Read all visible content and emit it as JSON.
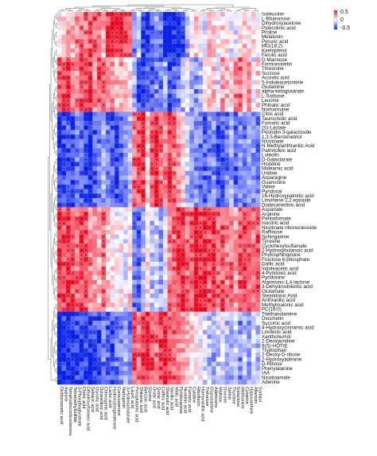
{
  "chart_data": {
    "type": "heatmap",
    "title": "",
    "xlabel": "",
    "ylabel": "",
    "color_scale": {
      "min": -0.5,
      "mid": 0,
      "max": 0.5,
      "low_color": "#0b24f0",
      "mid_color": "#ffffff",
      "high_color": "#f0112a"
    },
    "legend": {
      "position": "top-right",
      "ticks": [
        "0.5",
        "0",
        "-0.5"
      ]
    },
    "significance_marker": "*",
    "rows": [
      "Isoleucine",
      "L-Rhamnose",
      "Dihydroxyacetone",
      "Pipecolinic acid",
      "Proline",
      "Melatonin",
      "Pyruvic acid",
      "MG(18:2)",
      "Kaempferol",
      "Ferulic acid",
      "D-Mannose",
      "Formononetin",
      "Threonine",
      "Sucrose",
      "Aconitic acid",
      "5-Indoleacetonitrile",
      "Glutamine",
      "alpha-ketoglutarate",
      "L-Sorbose",
      "Leucine",
      "Phthalic acid",
      "Norharmane",
      "Citric acid",
      "Taurocholic acid",
      "Fumaric acid",
      "(S)-Lactate",
      "Peonidin 3-galactoside",
      "1,3,5-Benzenetriol",
      "Nicotinate",
      "N-Methylanthranilic Acid",
      "Palmitoleic acid",
      "Luteolin",
      "D-Galactarate",
      "Histidine",
      "Maleamic acid",
      "Uridine",
      "Asparagine",
      "Guanosine",
      "Valine",
      "Pyridoxal",
      "16-Hydroxypalmitic acid",
      "Limonene-1,2-epoxide",
      "Dodecanedioic acid",
      "Aspartate",
      "Arginine",
      "Pantothenate",
      "Isocitric acid",
      "Nicotinate ribonucleoside",
      "Raffinose",
      "Sphinganine",
      "Tyrosine",
      "Cyclohexylsulfamate",
      "2-Hydroxybutanoic acid",
      "Phytosphingosine",
      "Fructose 6-phosphate",
      "Gallic acid",
      "Indoleacetic acid",
      "4-Pyridoxic acid",
      "Pyridoxine",
      "Alaninono-1,4-lactone",
      "3-Dehydroshikimic acid",
      "Glutamate",
      "Stearidonic Acid",
      "Anthranilic acid",
      "Methylmalonic acid",
      "PC(16:0)",
      "Triethanolamine",
      "Diosmetin",
      "Succinic acid",
      "4-Hydroxycinnamic acid",
      "Linolenic acid",
      "Xanthohumol",
      "2-Deoxyuridine",
      "9(S)-HOTrE",
      "Tryptophan",
      "2-Deoxy-D-ribose",
      "2-Hydroxyadenine",
      "D-Ribose",
      "Phenylalanine",
      "IAA",
      "Nicotinamide",
      "Adenine"
    ],
    "columns": [
      "Dichloroacetic acid",
      "Alanine",
      "Tetrahydrocorticosterone",
      "Tetramethylsulfide",
      "3-Phosphoglycerate",
      "Cholic acid",
      "Dihydroxyfumaric acid",
      "Sebacic acid",
      "Glycolic acid",
      "Octanedioic acid",
      "Chlorogenic acid",
      "Lactic acid",
      "Hydroxyprogesterone",
      "Corticosterone",
      "Naringenin",
      "3-Hydroxybutyrate",
      "Lauric acid",
      "Pyroglutamic acid",
      "Shikimic acid",
      "Benzoic acid",
      "Glycine",
      "Orotic acid",
      "Quinic acid",
      "Caffeic acid",
      "Oleanolic acid",
      "Vanillic acid",
      "Malic acid",
      "Pyridoxamine",
      "Nicotinic acid",
      "Fumaric acid",
      "Cytidine",
      "Riboflavin",
      "Homovanillic acid",
      "Trehalose",
      "Glucosamine",
      "Adenosine",
      "Maltose",
      "Glucose",
      "Serine",
      "Thymine",
      "Galactose",
      "Methionine",
      "Cysteine",
      "Hypoxanthine",
      "Allantoin",
      "Sorbitol"
    ],
    "row_groups": [
      {
        "start": 0,
        "end": 9,
        "col_means": [
          0.05,
          0.1,
          0.2,
          0.15,
          0.25,
          0.3,
          0.3,
          0.35,
          0.35,
          0.3,
          0.15,
          0.4,
          0.5,
          0.45,
          0.45,
          0.4,
          0.3,
          -0.3,
          -0.1,
          -0.45,
          -0.4,
          -0.35,
          -0.2,
          -0.3,
          -0.5,
          -0.45,
          -0.45,
          -0.5,
          -0.4,
          -0.2,
          0.05,
          0.1,
          0.0,
          -0.1,
          0.15,
          0.1,
          0.0,
          0.1,
          0.05,
          -0.05,
          -0.1,
          0.05,
          0.1,
          0.05,
          0.1,
          0.0
        ]
      },
      {
        "start": 10,
        "end": 21,
        "col_means": [
          0.3,
          0.35,
          0.4,
          0.3,
          0.25,
          0.35,
          0.3,
          0.4,
          0.2,
          0.35,
          0.3,
          0.2,
          0.25,
          0.15,
          0.2,
          0.1,
          0.05,
          -0.2,
          -0.4,
          -0.45,
          -0.3,
          -0.35,
          -0.25,
          -0.3,
          -0.2,
          -0.4,
          -0.35,
          -0.25,
          -0.15,
          0.0,
          -0.2,
          -0.25,
          -0.15,
          0.05,
          0.1,
          0.15,
          -0.1,
          0.2,
          0.15,
          0.05,
          0.25,
          0.3,
          0.15,
          0.2,
          -0.05,
          0.1
        ]
      },
      {
        "start": 22,
        "end": 42,
        "col_means": [
          -0.45,
          -0.4,
          -0.35,
          -0.4,
          -0.3,
          -0.35,
          -0.4,
          -0.45,
          -0.35,
          -0.3,
          -0.2,
          -0.3,
          -0.35,
          -0.4,
          -0.3,
          -0.25,
          -0.15,
          0.3,
          0.35,
          0.4,
          0.1,
          0.35,
          0.45,
          0.3,
          0.25,
          0.4,
          0.3,
          0.2,
          0.1,
          -0.1,
          -0.2,
          -0.25,
          -0.3,
          -0.35,
          -0.3,
          -0.25,
          -0.4,
          -0.35,
          -0.3,
          -0.2,
          -0.35,
          -0.25,
          -0.3,
          -0.2,
          -0.25,
          -0.3
        ]
      },
      {
        "start": 43,
        "end": 65,
        "col_means": [
          0.45,
          0.35,
          0.4,
          0.35,
          0.3,
          0.4,
          0.35,
          0.25,
          0.2,
          0.15,
          0.3,
          0.1,
          0.05,
          0.0,
          0.05,
          -0.05,
          0.1,
          -0.3,
          -0.35,
          -0.2,
          0.05,
          -0.15,
          -0.1,
          -0.2,
          -0.05,
          0.25,
          0.3,
          0.4,
          0.45,
          0.3,
          0.35,
          0.5,
          0.4,
          0.45,
          0.35,
          0.4,
          0.3,
          0.35,
          0.25,
          0.3,
          0.2,
          0.35,
          0.4,
          0.3,
          0.25,
          0.35
        ]
      },
      {
        "start": 66,
        "end": 81,
        "col_means": [
          -0.5,
          -0.45,
          -0.5,
          -0.45,
          -0.4,
          -0.45,
          -0.4,
          -0.45,
          -0.35,
          -0.4,
          -0.3,
          -0.35,
          -0.4,
          -0.3,
          -0.25,
          -0.2,
          -0.3,
          0.35,
          0.3,
          0.4,
          0.45,
          0.35,
          0.3,
          0.4,
          0.45,
          0.35,
          0.3,
          0.25,
          0.2,
          0.15,
          0.1,
          0.05,
          0.0,
          -0.1,
          -0.15,
          -0.2,
          -0.1,
          -0.05,
          -0.15,
          -0.2,
          -0.1,
          -0.25,
          -0.15,
          -0.2,
          -0.1,
          -0.15
        ]
      }
    ]
  }
}
